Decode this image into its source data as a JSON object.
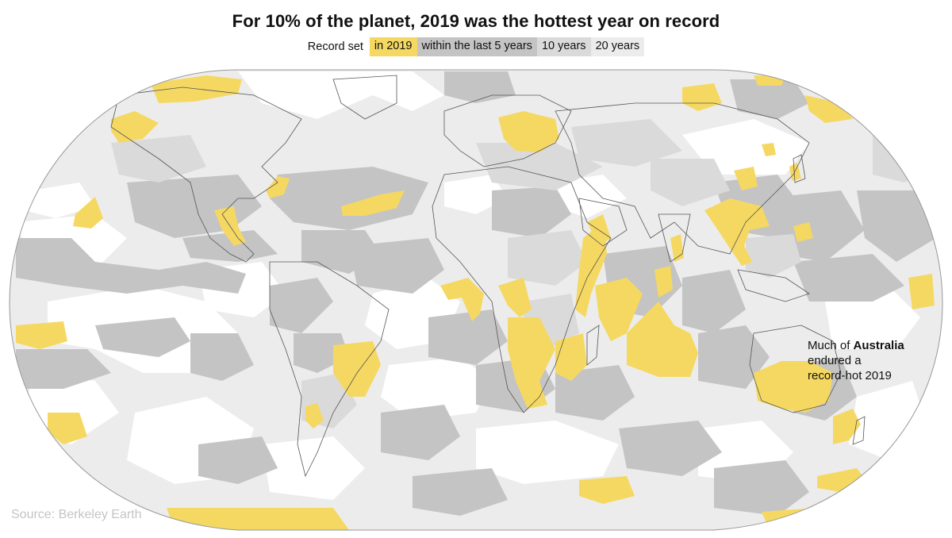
{
  "title": "For 10% of the planet, 2019 was the hottest year on record",
  "legend": {
    "label": "Record set",
    "items": [
      {
        "label": "in 2019",
        "color": "#f5d862"
      },
      {
        "label": "within the last 5 years",
        "color": "#c4c4c4"
      },
      {
        "label": "10 years",
        "color": "#dadada"
      },
      {
        "label": "20 years",
        "color": "#ececec"
      }
    ]
  },
  "annotation": {
    "line1_pre": "Much of ",
    "line1_bold": "Australia",
    "line2": "endured a",
    "line3": "record-hot 2019"
  },
  "source": "Source: Berkeley Earth",
  "colors": {
    "in_2019": "#f5d862",
    "last_5_years": "#c4c4c4",
    "ten_years": "#dadada",
    "twenty_years": "#ececec",
    "no_record": "#ffffff",
    "borders": "#555555"
  },
  "map": {
    "projection": "Robinson-like world map",
    "regions_record_2019": [
      "Alaska",
      "Mexico",
      "Caribbean",
      "Central Europe",
      "East Africa",
      "Southern Africa",
      "Southeast Asia",
      "Australia",
      "Indian Ocean",
      "Japan"
    ]
  }
}
